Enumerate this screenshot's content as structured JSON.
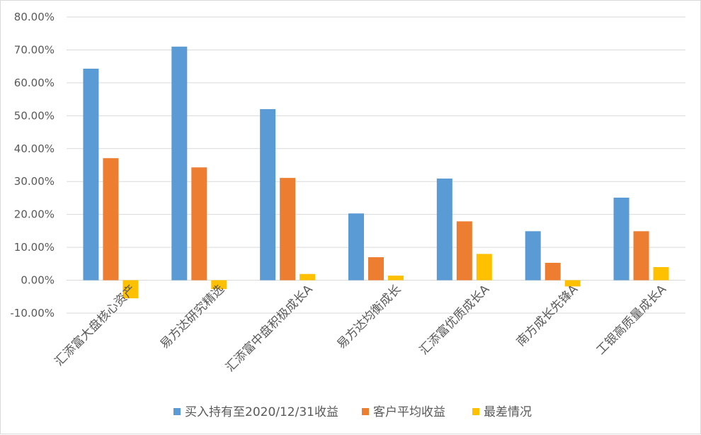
{
  "chart_data": {
    "type": "bar",
    "categories": [
      "汇添富大盘核心资产",
      "易方达研究精选",
      "汇添富中盘积极成长A",
      "易方达均衡成长",
      "汇添富优质成长A",
      "南方成长先锋A",
      "工银高质量成长A"
    ],
    "series": [
      {
        "name": "买入持有至2020/12/31收益",
        "values": [
          64.3,
          71.0,
          52.0,
          20.3,
          30.9,
          14.9,
          25.1
        ],
        "color": "#5b9bd5"
      },
      {
        "name": "客户平均收益",
        "values": [
          37.1,
          34.3,
          31.1,
          7.0,
          17.9,
          5.3,
          14.9
        ],
        "color": "#ed7d31"
      },
      {
        "name": "最差情况",
        "values": [
          -5.5,
          -2.7,
          1.9,
          1.4,
          8.0,
          -1.9,
          4.0
        ],
        "color": "#ffc000"
      }
    ],
    "y_ticks": [
      "-10.00%",
      "0.00%",
      "10.00%",
      "20.00%",
      "30.00%",
      "40.00%",
      "50.00%",
      "60.00%",
      "70.00%",
      "80.00%"
    ],
    "ylim": [
      -10,
      80
    ],
    "grid": true,
    "legend": "bottom",
    "title": "",
    "xlabel": "",
    "ylabel": ""
  }
}
